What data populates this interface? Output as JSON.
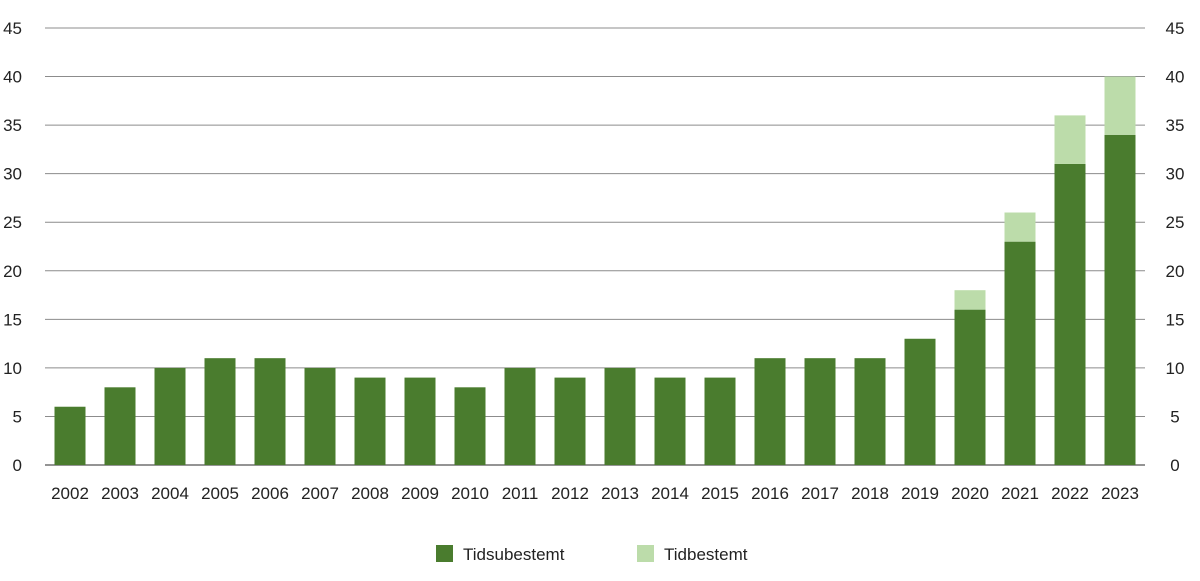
{
  "chart_data": {
    "type": "bar",
    "stacked": true,
    "categories": [
      "2002",
      "2003",
      "2004",
      "2005",
      "2006",
      "2007",
      "2008",
      "2009",
      "2010",
      "2011",
      "2012",
      "2013",
      "2014",
      "2015",
      "2016",
      "2017",
      "2018",
      "2019",
      "2020",
      "2021",
      "2022",
      "2023"
    ],
    "series": [
      {
        "name": "Tidsubestemt",
        "color": "#4a7c2e",
        "values": [
          6,
          8,
          10,
          11,
          11,
          10,
          9,
          9,
          8,
          10,
          9,
          10,
          9,
          9,
          11,
          11,
          11,
          13,
          16,
          23,
          31,
          34
        ]
      },
      {
        "name": "Tidbestemt",
        "color": "#bcdcaa",
        "values": [
          0,
          0,
          0,
          0,
          0,
          0,
          0,
          0,
          0,
          0,
          0,
          0,
          0,
          0,
          0,
          0,
          0,
          0,
          2,
          3,
          5,
          6
        ]
      }
    ],
    "title": "",
    "xlabel": "",
    "ylabel": "",
    "ylim": [
      0,
      45
    ],
    "yticks": [
      0,
      5,
      10,
      15,
      20,
      25,
      30,
      35,
      40,
      45
    ],
    "y_axis_both_sides": true,
    "grid": true,
    "legend_position": "bottom-center"
  }
}
